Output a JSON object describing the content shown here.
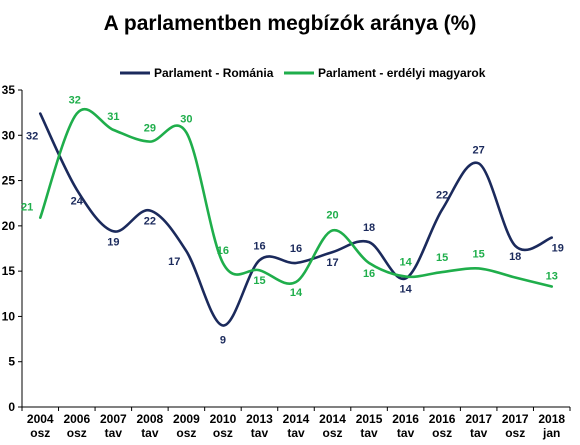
{
  "chart_data": {
    "type": "line",
    "title": "A parlamentben megbízók aránya (%)",
    "xlabel": "",
    "ylabel": "",
    "ylim": [
      0,
      35
    ],
    "yticks": [
      0,
      5,
      10,
      15,
      20,
      25,
      30,
      35
    ],
    "grid": false,
    "legend_position": "top",
    "categories": [
      [
        "2004",
        "osz"
      ],
      [
        "2006",
        "osz"
      ],
      [
        "2007",
        "tav"
      ],
      [
        "2008",
        "tav"
      ],
      [
        "2009",
        "osz"
      ],
      [
        "2010",
        "osz"
      ],
      [
        "2013",
        "tav"
      ],
      [
        "2014",
        "tav"
      ],
      [
        "2014",
        "osz"
      ],
      [
        "2015",
        "tav"
      ],
      [
        "2016",
        "tav"
      ],
      [
        "2016",
        "osz"
      ],
      [
        "2017",
        "tav"
      ],
      [
        "2017",
        "osz"
      ],
      [
        "2018",
        "jan"
      ]
    ],
    "series": [
      {
        "name": "Parlament - Románia",
        "color": "#1b2a5c",
        "values": [
          32,
          24,
          19,
          22,
          17,
          9,
          16,
          16,
          17,
          18,
          14,
          22,
          27,
          18,
          19
        ],
        "plot_values": [
          32.4,
          24,
          19.4,
          21.7,
          17.2,
          9,
          16.2,
          15.9,
          17.1,
          18.2,
          14.2,
          21.8,
          26.9,
          17.8,
          18.7
        ]
      },
      {
        "name": "Parlament - erdélyi magyarok",
        "color": "#1fae4b",
        "values": [
          21,
          32,
          31,
          29,
          30,
          16,
          15,
          14,
          20,
          16,
          14,
          15,
          15,
          15,
          13
        ],
        "plot_values": [
          20.9,
          32.4,
          30.6,
          29.3,
          30.3,
          15.9,
          15.1,
          13.8,
          19.5,
          15.9,
          14.4,
          14.9,
          15.3,
          14.3,
          13.3
        ]
      }
    ]
  }
}
